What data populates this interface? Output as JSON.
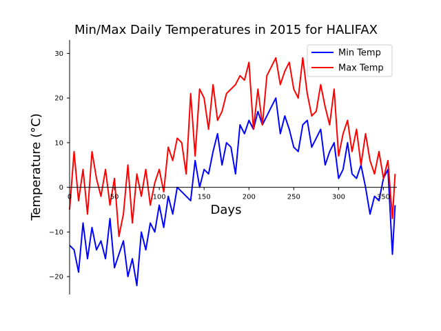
{
  "chart_data": {
    "type": "line",
    "title": "Min/Max Daily Temperatures in 2015 for HALIFAX",
    "xlabel": "Days",
    "ylabel": "Temperature (°C)",
    "xlim": [
      0,
      365
    ],
    "ylim": [
      -24,
      33
    ],
    "xticks": [
      0,
      50,
      100,
      150,
      200,
      250,
      300,
      350
    ],
    "yticks": [
      -20,
      -10,
      0,
      10,
      20,
      30
    ],
    "grid": false,
    "legend_position": "top-right",
    "series": [
      {
        "name": "Min Temp",
        "color": "#0000ff",
        "x": [
          0,
          5,
          10,
          15,
          20,
          25,
          30,
          35,
          40,
          45,
          50,
          55,
          60,
          65,
          70,
          75,
          80,
          85,
          90,
          95,
          100,
          105,
          110,
          115,
          120,
          125,
          130,
          135,
          140,
          145,
          150,
          155,
          160,
          165,
          170,
          175,
          180,
          185,
          190,
          195,
          200,
          205,
          210,
          215,
          220,
          225,
          230,
          235,
          240,
          245,
          250,
          255,
          260,
          265,
          270,
          275,
          280,
          285,
          290,
          295,
          300,
          305,
          310,
          315,
          320,
          325,
          330,
          335,
          340,
          345,
          350,
          355,
          360,
          363
        ],
        "y": [
          -13,
          -14,
          -19,
          -8,
          -16,
          -9,
          -14,
          -12,
          -16,
          -7,
          -18,
          -15,
          -12,
          -20,
          -16,
          -22,
          -10,
          -14,
          -8,
          -10,
          -4,
          -9,
          -2,
          -6,
          0,
          -1,
          -2,
          -3,
          6,
          0,
          4,
          3,
          8,
          12,
          5,
          10,
          9,
          3,
          14,
          12,
          15,
          13,
          17,
          14,
          16,
          18,
          20,
          12,
          16,
          13,
          9,
          8,
          14,
          15,
          9,
          11,
          13,
          5,
          8,
          10,
          2,
          4,
          10,
          3,
          2,
          5,
          0,
          -6,
          -2,
          -3,
          2,
          4,
          -15,
          -4
        ]
      },
      {
        "name": "Max Temp",
        "color": "#ff0000",
        "x": [
          0,
          5,
          10,
          15,
          20,
          25,
          30,
          35,
          40,
          45,
          50,
          55,
          60,
          65,
          70,
          75,
          80,
          85,
          90,
          95,
          100,
          105,
          110,
          115,
          120,
          125,
          130,
          135,
          140,
          145,
          150,
          155,
          160,
          165,
          170,
          175,
          180,
          185,
          190,
          195,
          200,
          205,
          210,
          215,
          220,
          225,
          230,
          235,
          240,
          245,
          250,
          255,
          260,
          265,
          270,
          275,
          280,
          285,
          290,
          295,
          300,
          305,
          310,
          315,
          320,
          325,
          330,
          335,
          340,
          345,
          350,
          355,
          360,
          363
        ],
        "y": [
          -5,
          8,
          -3,
          4,
          -6,
          8,
          2,
          -2,
          4,
          -4,
          2,
          -11,
          -6,
          5,
          -8,
          3,
          -2,
          4,
          -4,
          1,
          4,
          -1,
          9,
          6,
          11,
          10,
          3,
          21,
          7,
          22,
          20,
          13,
          23,
          15,
          17,
          21,
          22,
          23,
          25,
          24,
          28,
          13,
          22,
          14,
          25,
          27,
          29,
          23,
          26,
          28,
          22,
          20,
          29,
          21,
          16,
          17,
          23,
          18,
          14,
          22,
          7,
          12,
          15,
          8,
          13,
          5,
          12,
          6,
          3,
          8,
          2,
          6,
          -7,
          3
        ]
      }
    ]
  }
}
